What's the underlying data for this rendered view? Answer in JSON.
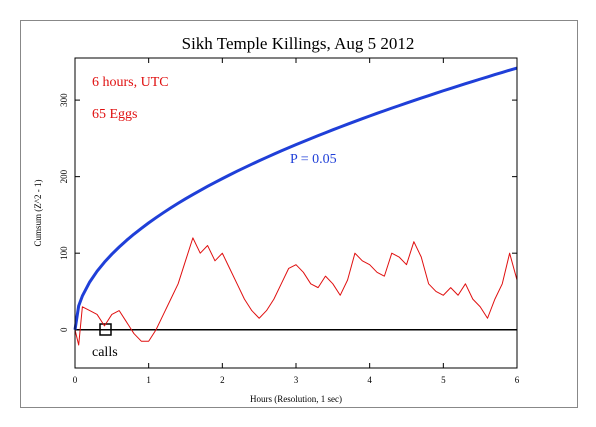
{
  "chart_data": {
    "type": "line",
    "title": "Sikh Temple Killings, Aug 5 2012",
    "xlabel": "Hours (Resolution, 1 sec)",
    "ylabel": "Cumsum (Z^2 - 1)",
    "annotations": [
      "6 hours, UTC",
      "65 Eggs",
      "P = 0.05",
      "calls"
    ],
    "x": [
      0,
      0.05,
      0.1,
      0.2,
      0.3,
      0.4,
      0.5,
      0.6,
      0.7,
      0.8,
      0.9,
      1.0,
      1.1,
      1.2,
      1.3,
      1.4,
      1.5,
      1.6,
      1.7,
      1.8,
      1.9,
      2.0,
      2.1,
      2.2,
      2.3,
      2.4,
      2.5,
      2.6,
      2.7,
      2.8,
      2.9,
      3.0,
      3.1,
      3.2,
      3.3,
      3.4,
      3.5,
      3.6,
      3.7,
      3.8,
      3.9,
      4.0,
      4.1,
      4.2,
      4.3,
      4.4,
      4.5,
      4.6,
      4.7,
      4.8,
      4.9,
      5.0,
      5.1,
      5.2,
      5.3,
      5.4,
      5.5,
      5.6,
      5.7,
      5.8,
      5.9,
      6.0
    ],
    "series": [
      {
        "name": "P = 0.05",
        "color": "#1f3fd8",
        "width": 3,
        "values": [
          0,
          31.2,
          44.1,
          62.4,
          76.5,
          88.3,
          98.7,
          108.1,
          116.8,
          124.9,
          132.4,
          139.6,
          146.4,
          152.9,
          159.2,
          165.2,
          171.0,
          176.6,
          182.0,
          187.3,
          192.4,
          197.4,
          202.3,
          207.1,
          211.7,
          216.3,
          220.7,
          225.1,
          229.4,
          233.6,
          237.7,
          241.8,
          245.8,
          249.7,
          253.6,
          257.4,
          261.2,
          264.9,
          268.5,
          272.1,
          275.7,
          279.2,
          282.7,
          286.1,
          289.5,
          292.8,
          296.1,
          299.4,
          302.6,
          305.8,
          309.0,
          312.2,
          315.3,
          318.3,
          321.4,
          324.4,
          327.4,
          330.3,
          333.3,
          336.2,
          339.1,
          341.9
        ]
      },
      {
        "name": "65 Eggs",
        "color": "#e01010",
        "width": 1,
        "values": [
          0,
          -20,
          30,
          25,
          20,
          5,
          20,
          25,
          10,
          -5,
          -15,
          -15,
          0,
          20,
          40,
          60,
          90,
          120,
          100,
          110,
          90,
          100,
          80,
          60,
          40,
          25,
          15,
          25,
          40,
          60,
          80,
          85,
          75,
          60,
          55,
          70,
          60,
          45,
          65,
          100,
          90,
          85,
          75,
          70,
          100,
          95,
          85,
          115,
          95,
          60,
          50,
          45,
          55,
          45,
          60,
          40,
          30,
          15,
          40,
          60,
          100,
          65
        ]
      }
    ],
    "xlim": [
      0,
      6
    ],
    "xticks": [
      0,
      1,
      2,
      3,
      4,
      5,
      6
    ],
    "ylim": [
      -50,
      355
    ],
    "yticks": [
      0,
      100,
      200,
      300
    ]
  }
}
